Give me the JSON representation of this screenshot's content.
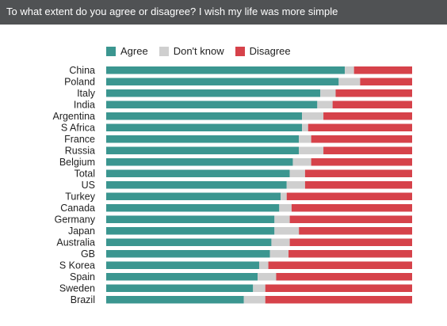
{
  "header": {
    "title": "To what extent do you agree or disagree? I wish my life was more simple"
  },
  "colors": {
    "agree": "#3b9690",
    "dont_know": "#cfcfcf",
    "disagree": "#d6424a",
    "title_bar": "#505254"
  },
  "chart_data": {
    "type": "bar",
    "orientation": "horizontal",
    "stacked": true,
    "normalized": true,
    "title": "To what extent do you agree or disagree? I wish my life was more simple",
    "legend": {
      "placement": "top",
      "entries": [
        "Agree",
        "Don't know",
        "Disagree"
      ]
    },
    "categories": [
      "China",
      "Poland",
      "Italy",
      "India",
      "Argentina",
      "S Africa",
      "France",
      "Russia",
      "Belgium",
      "Total",
      "US",
      "Turkey",
      "Canada",
      "Germany",
      "Japan",
      "Australia",
      "GB",
      "S Korea",
      "Spain",
      "Sweden",
      "Brazil"
    ],
    "series": [
      {
        "name": "Agree",
        "values": [
          78,
          76,
          70,
          69,
          64,
          64,
          63,
          63,
          61,
          60,
          59,
          57,
          56,
          55,
          55,
          54,
          53,
          50,
          49,
          48,
          45
        ]
      },
      {
        "name": "Don't know",
        "values": [
          3,
          7,
          5,
          5,
          7,
          2,
          4,
          8,
          6,
          5,
          6,
          2,
          4,
          5,
          8,
          6,
          6,
          3,
          6,
          4,
          7
        ]
      },
      {
        "name": "Disagree",
        "values": [
          19,
          17,
          25,
          26,
          29,
          34,
          33,
          29,
          33,
          35,
          35,
          41,
          39,
          40,
          37,
          40,
          40,
          47,
          44,
          48,
          48
        ]
      }
    ],
    "xlabel": "",
    "ylabel": "",
    "grid": false
  }
}
